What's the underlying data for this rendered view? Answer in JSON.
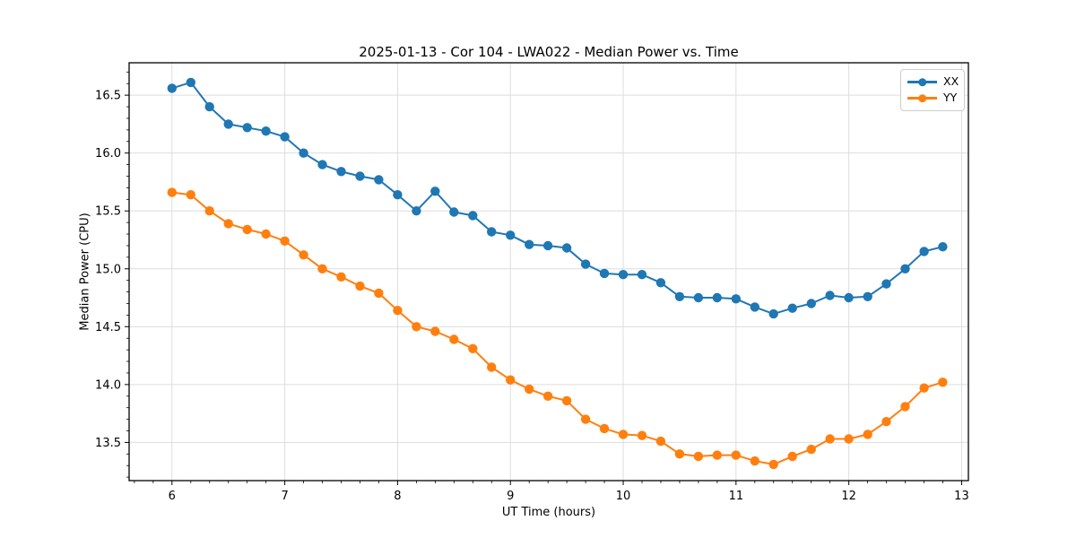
{
  "figure": {
    "title": "2025-01-13 - Cor 104 - LWA022 - Median Power vs. Time"
  },
  "axes": {
    "xlabel": "UT Time (hours)",
    "ylabel": "Median Power (CPU)"
  },
  "legend": {
    "position": "upper right",
    "entries": [
      {
        "label": "XX",
        "color": "#1f77b4"
      },
      {
        "label": "YY",
        "color": "#ff7f0e"
      }
    ]
  },
  "style": {
    "grid_color": "#dddddd",
    "spine_color": "#000000",
    "tick_color": "#000000",
    "background": "#ffffff"
  },
  "chart_data": {
    "type": "line",
    "title": "2025-01-13 - Cor 104 - LWA022 - Median Power vs. Time",
    "xlabel": "UT Time (hours)",
    "ylabel": "Median Power (CPU)",
    "grid": true,
    "marker": "o",
    "legend_position": "upper right",
    "xlim": [
      5.62,
      13.06
    ],
    "ylim": [
      13.17,
      16.78
    ],
    "x_ticks": [
      6,
      7,
      8,
      9,
      10,
      11,
      12,
      13
    ],
    "y_ticks": [
      13.5,
      14.0,
      14.5,
      15.0,
      15.5,
      16.0,
      16.5
    ],
    "x_minor_step": 0.1667,
    "y_minor_step": 0.1,
    "x": [
      6.0,
      6.167,
      6.333,
      6.5,
      6.667,
      6.833,
      7.0,
      7.167,
      7.333,
      7.5,
      7.667,
      7.833,
      8.0,
      8.167,
      8.333,
      8.5,
      8.667,
      8.833,
      9.0,
      9.167,
      9.333,
      9.5,
      9.667,
      9.833,
      10.0,
      10.167,
      10.333,
      10.5,
      10.667,
      10.833,
      11.0,
      11.167,
      11.333,
      11.5,
      11.667,
      11.833,
      12.0,
      12.167,
      12.333,
      12.5,
      12.667,
      12.833
    ],
    "series": [
      {
        "name": "XX",
        "color": "#1f77b4",
        "values": [
          16.56,
          16.61,
          16.4,
          16.25,
          16.22,
          16.19,
          16.14,
          16.0,
          15.9,
          15.84,
          15.8,
          15.77,
          15.64,
          15.5,
          15.67,
          15.49,
          15.46,
          15.32,
          15.29,
          15.21,
          15.2,
          15.18,
          15.04,
          14.96,
          14.95,
          14.95,
          14.88,
          14.76,
          14.75,
          14.75,
          14.74,
          14.67,
          14.61,
          14.66,
          14.7,
          14.77,
          14.75,
          14.76,
          14.87,
          15.0,
          15.15,
          15.19
        ]
      },
      {
        "name": "YY",
        "color": "#ff7f0e",
        "values": [
          15.66,
          15.64,
          15.5,
          15.39,
          15.34,
          15.3,
          15.24,
          15.12,
          15.0,
          14.93,
          14.85,
          14.79,
          14.64,
          14.5,
          14.46,
          14.39,
          14.31,
          14.15,
          14.04,
          13.96,
          13.9,
          13.86,
          13.7,
          13.62,
          13.57,
          13.56,
          13.51,
          13.4,
          13.38,
          13.39,
          13.39,
          13.34,
          13.31,
          13.38,
          13.44,
          13.53,
          13.53,
          13.57,
          13.68,
          13.81,
          13.97,
          14.02
        ]
      }
    ]
  }
}
